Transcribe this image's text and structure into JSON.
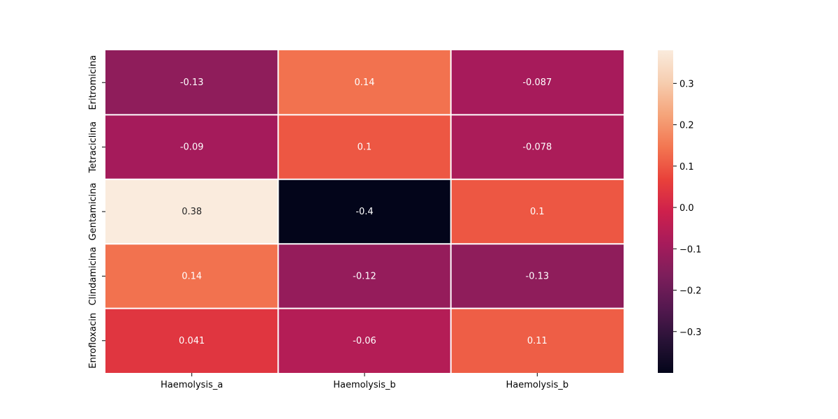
{
  "chart_data": {
    "type": "heatmap",
    "title": "",
    "xlabel": "",
    "ylabel": "",
    "x_categories": [
      "Haemolysis_a",
      "Haemolysis_b",
      "Haemolysis_b"
    ],
    "y_categories": [
      "Eritromicina",
      "Tetraciclina",
      "Gentamicina",
      "Clindamicina",
      "Enrofloxacin"
    ],
    "values": [
      [
        -0.13,
        0.14,
        -0.087
      ],
      [
        -0.09,
        0.1,
        -0.078
      ],
      [
        0.38,
        -0.4,
        0.1
      ],
      [
        0.14,
        -0.12,
        -0.13
      ],
      [
        0.041,
        -0.06,
        0.11
      ]
    ],
    "cell_labels": [
      [
        "-0.13",
        "0.14",
        "-0.087"
      ],
      [
        "-0.09",
        "0.1",
        "-0.078"
      ],
      [
        "0.38",
        "-0.4",
        "0.1"
      ],
      [
        "0.14",
        "-0.12",
        "-0.13"
      ],
      [
        "0.041",
        "-0.06",
        "0.11"
      ]
    ],
    "colorbar": {
      "colormap": "rocket",
      "range": [
        -0.4,
        0.38
      ],
      "ticks": [
        -0.3,
        -0.2,
        -0.1,
        0.0,
        0.1,
        0.2,
        0.3
      ],
      "tick_labels": [
        "−0.3",
        "−0.2",
        "−0.1",
        "0.0",
        "0.1",
        "0.2",
        "0.3"
      ]
    },
    "grid_line_color": "#ffffff"
  }
}
